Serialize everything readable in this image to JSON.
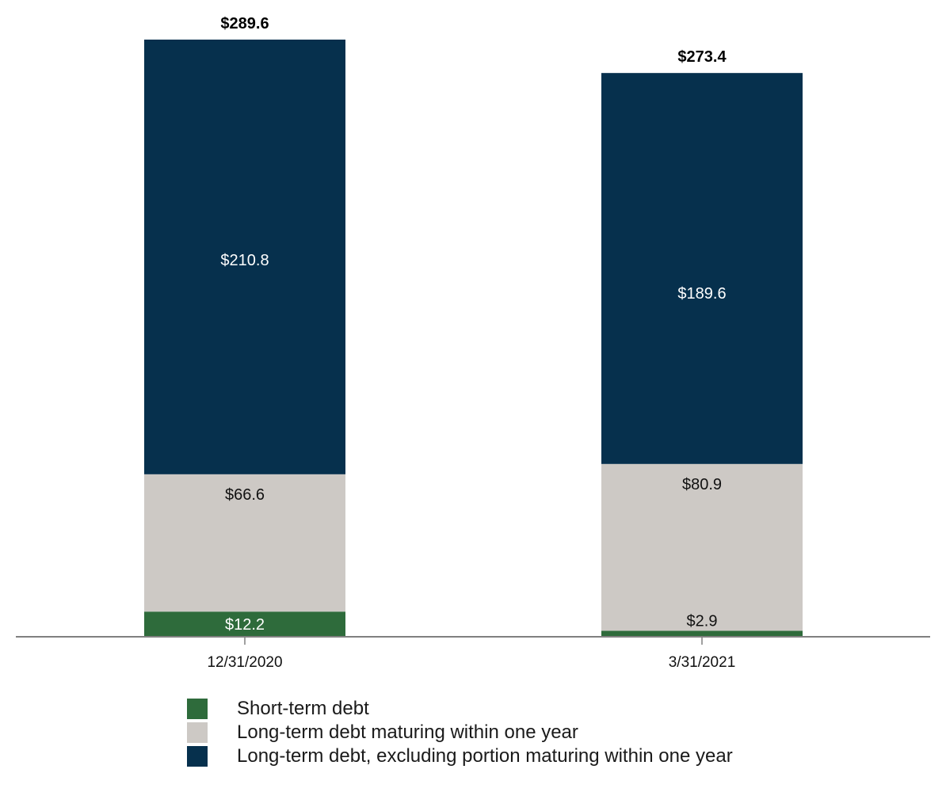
{
  "chart_data": {
    "type": "bar",
    "stacked": true,
    "categories": [
      "12/31/2020",
      "3/31/2021"
    ],
    "series": [
      {
        "name": "Short-term debt",
        "color": "#2e6b3b",
        "label_color": "#ffffff",
        "values": [
          12.2,
          2.9
        ],
        "labels": [
          "$12.2",
          "$2.9"
        ]
      },
      {
        "name": "Long-term debt maturing within one year",
        "color": "#cdc9c5",
        "label_color": "#111111",
        "values": [
          66.6,
          80.9
        ],
        "labels": [
          "$66.6",
          "$80.9"
        ]
      },
      {
        "name": "Long-term debt, excluding portion maturing within one year",
        "color": "#06304d",
        "label_color": "#ffffff",
        "values": [
          210.8,
          189.6
        ],
        "labels": [
          "$210.8",
          "$189.6"
        ]
      }
    ],
    "totals": [
      289.6,
      273.4
    ],
    "total_labels": [
      "$289.6",
      "$273.4"
    ],
    "ylim": [
      0,
      289.6
    ],
    "grid": false,
    "legend_position": "bottom",
    "title": "",
    "xlabel": "",
    "ylabel": ""
  }
}
